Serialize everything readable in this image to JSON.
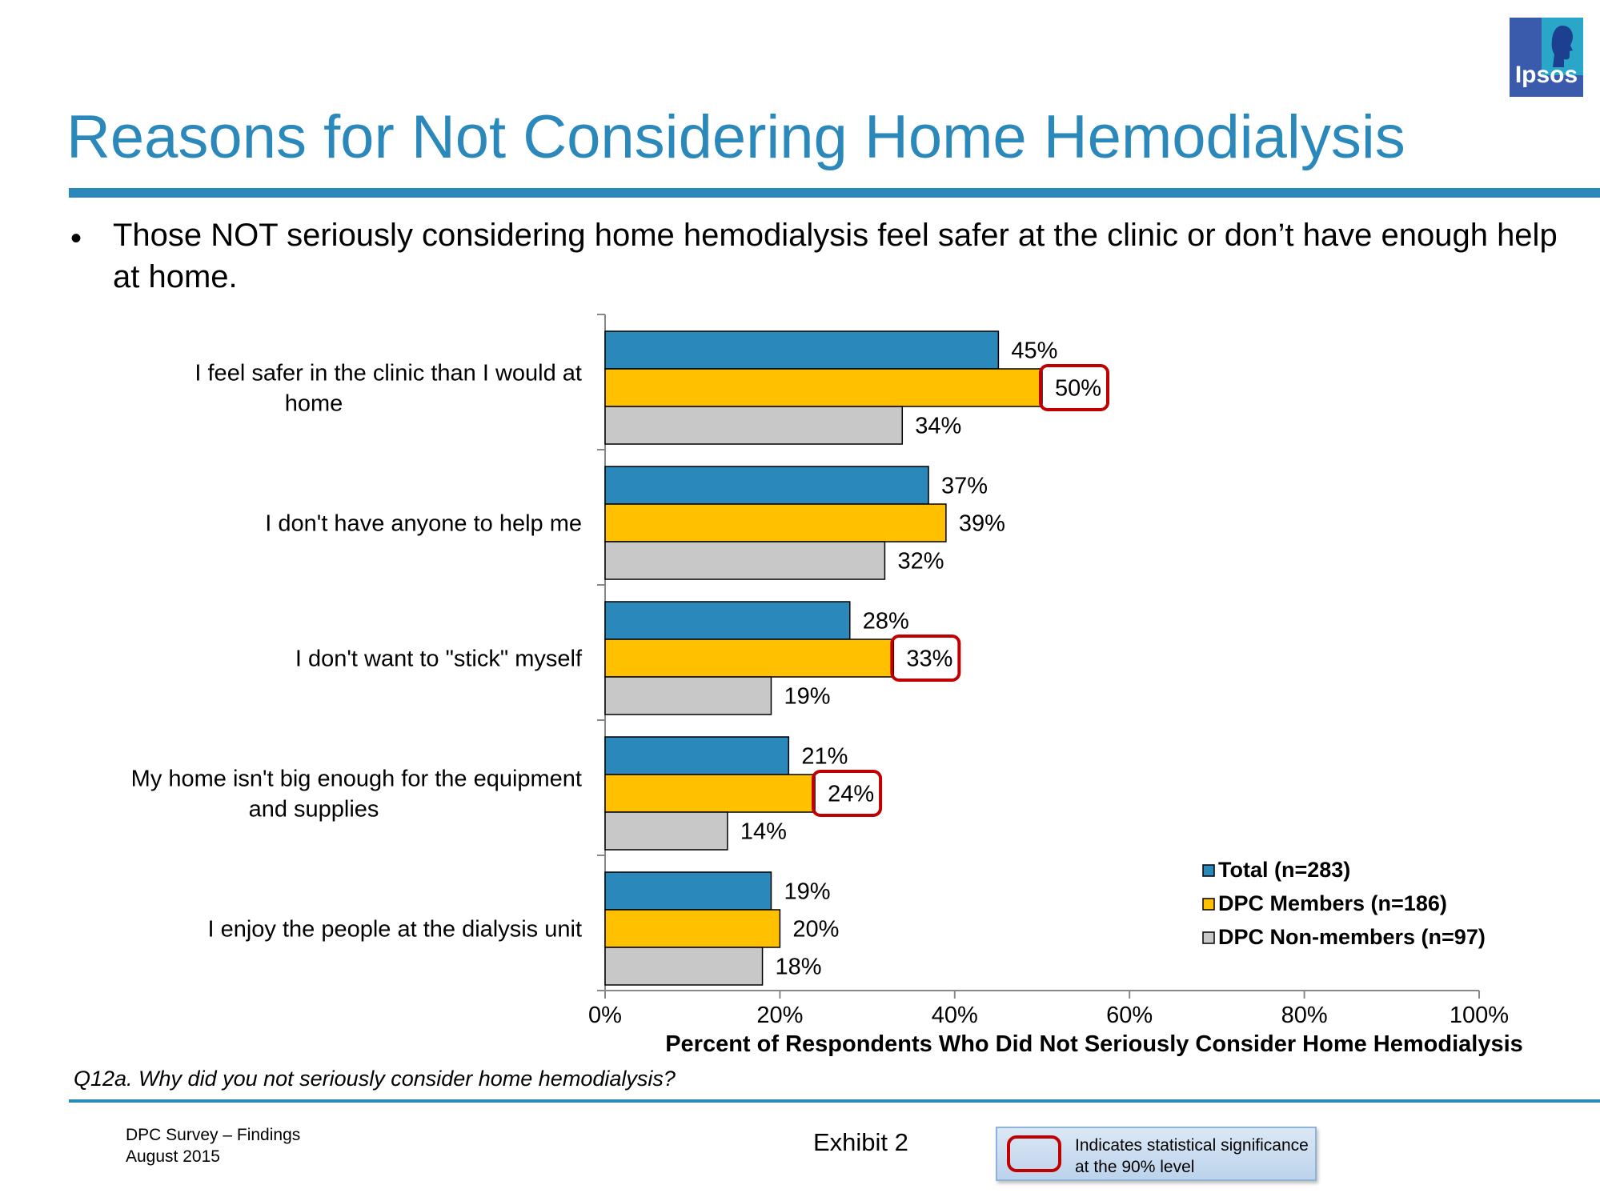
{
  "logo": {
    "text": "Ipsos"
  },
  "title": "Reasons for Not Considering Home Hemodialysis",
  "bullet": "Those NOT seriously considering home hemodialysis feel safer at the clinic or don’t have enough help at home.",
  "question": "Q12a. Why did you not seriously consider home hemodialysis?",
  "footer": {
    "line1": "DPC Survey – Findings",
    "line2": "August 2015",
    "exhibit": "Exhibit 2"
  },
  "significance_note": "Indicates statistical significance at the 90% level",
  "colors": {
    "total": "#2a88bb",
    "members": "#ffc000",
    "non_members": "#c8c8c8",
    "highlight": "#c00000",
    "title": "#2a88bb"
  },
  "chart_data": {
    "type": "bar",
    "orientation": "horizontal",
    "categories": [
      "I feel safer in the clinic than I would at home",
      "I don't have anyone to help me",
      "I don't want to \"stick\" myself",
      "My home isn't big enough for the equipment and supplies",
      "I enjoy the people at the dialysis unit"
    ],
    "series": [
      {
        "name": "Total (n=283)",
        "values": [
          45,
          37,
          28,
          21,
          19
        ],
        "labels": [
          "45%",
          "37%",
          "28%",
          "21%",
          "19%"
        ]
      },
      {
        "name": "DPC Members (n=186)",
        "values": [
          50,
          39,
          33,
          24,
          20
        ],
        "labels": [
          "50%",
          "39%",
          "33%",
          "24%",
          "20%"
        ],
        "significant": [
          true,
          false,
          true,
          true,
          false
        ]
      },
      {
        "name": "DPC Non-members (n=97)",
        "values": [
          34,
          32,
          19,
          14,
          18
        ],
        "labels": [
          "34%",
          "32%",
          "19%",
          "14%",
          "18%"
        ]
      }
    ],
    "xlim": [
      0,
      100
    ],
    "xticks": [
      "0%",
      "20%",
      "40%",
      "60%",
      "80%",
      "100%"
    ],
    "xlabel": "Percent of Respondents Who Did Not Seriously Consider Home Hemodialysis",
    "legend_position": "bottom-right"
  }
}
